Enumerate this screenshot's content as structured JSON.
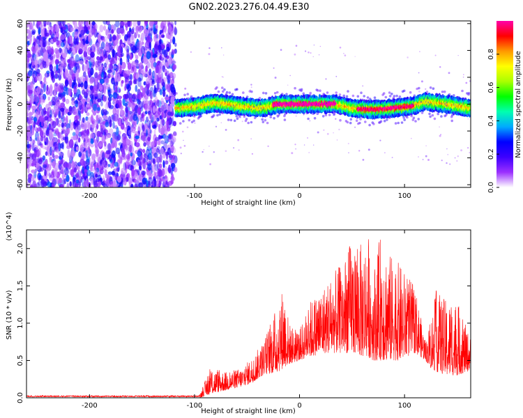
{
  "figure_title": "GN02.2023.276.04.49.E30",
  "chart_data": [
    {
      "type": "heatmap",
      "title": "",
      "xlabel": "Height of straight line (km)",
      "ylabel": "Frequency (Hz)",
      "xlim": [
        -260,
        163
      ],
      "ylim": [
        -62,
        62
      ],
      "xticks": [
        "-200",
        "-100",
        "0",
        "100"
      ],
      "xtick_values": [
        -200,
        -100,
        0,
        100
      ],
      "yticks": [
        "-60",
        "-40",
        "-20",
        "0",
        "20",
        "40",
        "60"
      ],
      "ytick_values": [
        -60,
        -40,
        -20,
        0,
        20,
        40,
        60
      ],
      "colorbar": {
        "label": "Normalized spectral amplitude",
        "range": [
          0,
          1
        ],
        "ticks": [
          "0.0",
          "0.2",
          "0.4",
          "0.6",
          "0.8"
        ],
        "tick_values": [
          0,
          0.2,
          0.4,
          0.6,
          0.8
        ],
        "colors": [
          "#ffffff",
          "#9b30ff",
          "#3d00ff",
          "#0000ff",
          "#00aaff",
          "#00ffb0",
          "#00ff00",
          "#aaff00",
          "#ffff00",
          "#ff9900",
          "#ff0000",
          "#ff00aa"
        ]
      },
      "regions": [
        {
          "x": [
            -260,
            -118
          ],
          "freq_range": [
            -62,
            62
          ],
          "amplitude": "low, scattered noise"
        },
        {
          "x": [
            -118,
            163
          ],
          "freq_center": -2,
          "freq_halfwidth": 6,
          "amplitude": "moderate to peak narrow band"
        }
      ],
      "band_centerline": {
        "x": [
          -118,
          -100,
          -80,
          -60,
          -40,
          -30,
          -20,
          0,
          20,
          35,
          50,
          70,
          90,
          100,
          110,
          120,
          140,
          163
        ],
        "y": [
          -3,
          -2,
          1,
          -1,
          -3,
          -2,
          0,
          0,
          0,
          0,
          -3,
          -4,
          -3,
          -2,
          -1,
          2,
          0,
          -3
        ]
      }
    },
    {
      "type": "line",
      "title": "",
      "xlabel": "Height of straight line (km)",
      "ylabel": "SNR (10 * v/v)",
      "y_multiplier_label": "(x10^4)",
      "xlim": [
        -260,
        163
      ],
      "ylim": [
        0,
        2.25
      ],
      "xticks": [
        "-200",
        "-100",
        "0",
        "100"
      ],
      "xtick_values": [
        -200,
        -100,
        0,
        100
      ],
      "yticks": [
        "0.0",
        "0.5",
        "1.0",
        "1.5",
        "2.0"
      ],
      "ytick_values": [
        0,
        0.5,
        1.0,
        1.5,
        2.0
      ],
      "series": [
        {
          "color": "#ff0000",
          "envelope_x": [
            -260,
            -120,
            -95,
            -85,
            -70,
            -55,
            -45,
            -35,
            -20,
            -15,
            -10,
            0,
            10,
            25,
            40,
            50,
            60,
            65,
            70,
            78,
            85,
            95,
            110,
            120,
            125,
            130,
            140,
            150,
            160,
            163
          ],
          "envelope_y": [
            0.02,
            0.03,
            0.05,
            0.4,
            0.35,
            0.4,
            0.55,
            0.75,
            1.3,
            1.55,
            1.0,
            0.9,
            1.3,
            1.55,
            1.8,
            2.15,
            2.05,
            2.25,
            1.7,
            2.25,
            1.95,
            1.8,
            1.5,
            0.75,
            1.05,
            1.45,
            1.3,
            1.3,
            0.9,
            0.8
          ],
          "floor_y": [
            0.0,
            0.0,
            0.0,
            0.05,
            0.1,
            0.15,
            0.2,
            0.3,
            0.35,
            0.4,
            0.45,
            0.5,
            0.55,
            0.6,
            0.6,
            0.6,
            0.55,
            0.55,
            0.5,
            0.5,
            0.5,
            0.5,
            0.6,
            0.5,
            0.4,
            0.35,
            0.3,
            0.3,
            0.35,
            0.4
          ]
        }
      ]
    }
  ]
}
